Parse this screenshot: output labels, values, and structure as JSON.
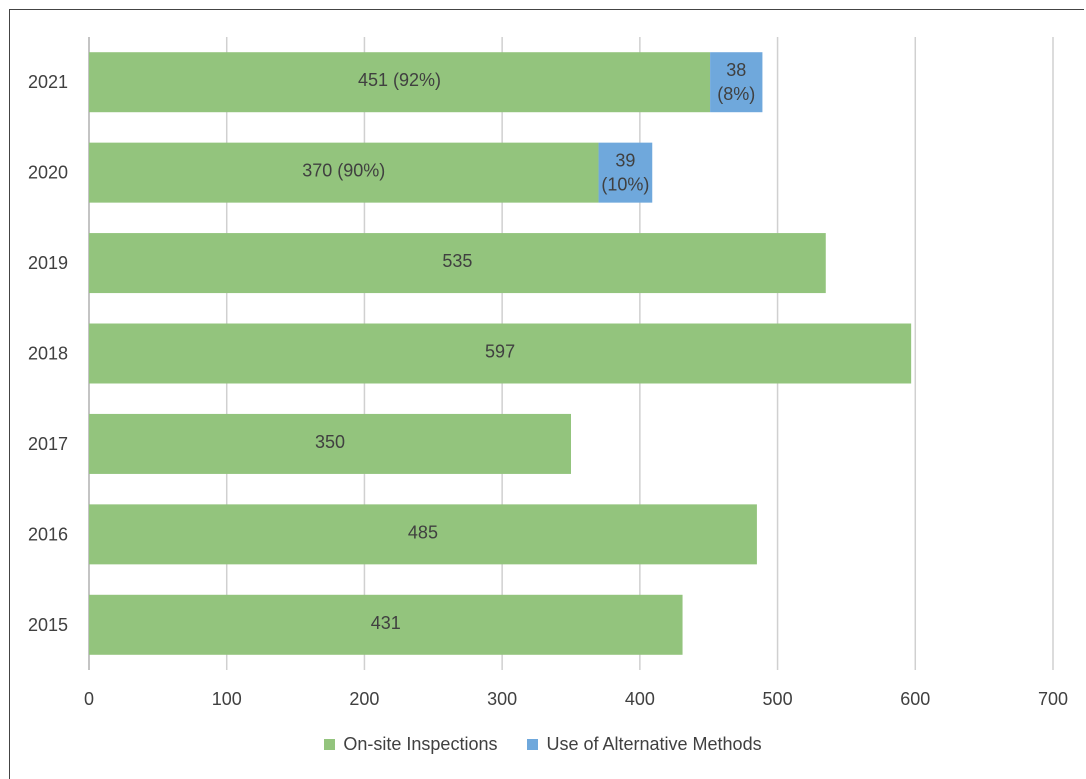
{
  "chart_data": {
    "type": "bar",
    "orientation": "horizontal",
    "stacked": true,
    "categories": [
      "2021",
      "2020",
      "2019",
      "2018",
      "2017",
      "2016",
      "2015"
    ],
    "series": [
      {
        "name": "On-site Inspections",
        "color": "#93c47d",
        "values": [
          451,
          370,
          535,
          597,
          350,
          485,
          431
        ],
        "labels": [
          "451 (92%)",
          "370 (90%)",
          "535",
          "597",
          "350",
          "485",
          "431"
        ]
      },
      {
        "name": "Use of Alternative Methods",
        "color": "#6fa8dc",
        "values": [
          38,
          39,
          0,
          0,
          0,
          0,
          0
        ],
        "labels": [
          [
            "38",
            "(8%)"
          ],
          [
            "39",
            "(10%)"
          ],
          null,
          null,
          null,
          null,
          null
        ]
      }
    ],
    "xticks": [
      "0",
      "100",
      "200",
      "300",
      "400",
      "500",
      "600",
      "700"
    ],
    "xlim": [
      0,
      700
    ],
    "grid": true,
    "legend_position": "bottom"
  }
}
